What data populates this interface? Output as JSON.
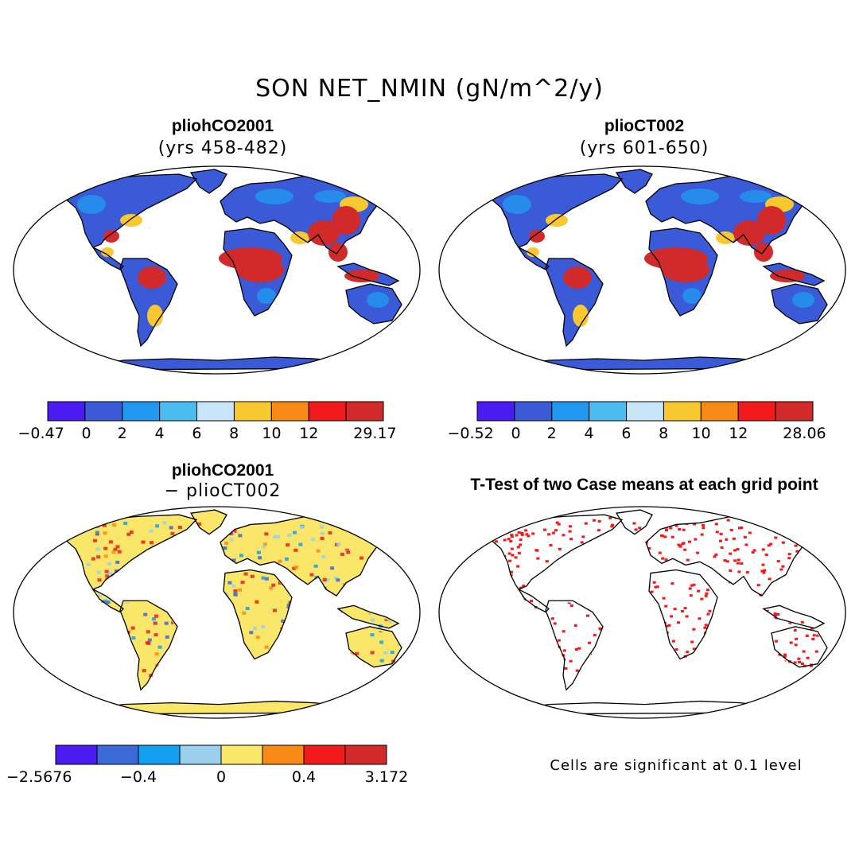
{
  "title": "SON NET_NMIN (gN/m^2/y)",
  "panels": [
    {
      "title": "pliohCO2001",
      "subtitle": "(yrs 458-482)",
      "colorbar": {
        "colors": [
          "#4a1cf2",
          "#3a5ad8",
          "#2098f0",
          "#4cbcf0",
          "#c8e6f5",
          "#f8c830",
          "#f88a18",
          "#f21a1a",
          "#d22a2a"
        ],
        "labels": [
          "−0.47",
          "0",
          "2",
          "4",
          "6",
          "8",
          "10",
          "12",
          "29.17"
        ]
      }
    },
    {
      "title": "plioCT002",
      "subtitle": "(yrs 601-650)",
      "colorbar": {
        "colors": [
          "#4a1cf2",
          "#3a5ad8",
          "#2098f0",
          "#4cbcf0",
          "#c8e6f5",
          "#f8c830",
          "#f88a18",
          "#f21a1a",
          "#d22a2a"
        ],
        "labels": [
          "−0.52",
          "0",
          "2",
          "4",
          "6",
          "8",
          "10",
          "12",
          "28.06"
        ]
      }
    },
    {
      "title": "pliohCO2001",
      "subtitle": "− plioCT002",
      "colorbar": {
        "colors": [
          "#4a1cf2",
          "#3a6ad8",
          "#14a0f0",
          "#9ad0ee",
          "#fae668",
          "#f88a18",
          "#f21a1a",
          "#d22a2a"
        ],
        "labels": [
          "−2.5676",
          "−0.4",
          "0",
          "0.4",
          "3.172"
        ]
      }
    },
    {
      "title": "T-Test of two Case means at each grid point",
      "note": "Cells are significant at 0.1 level"
    }
  ]
}
